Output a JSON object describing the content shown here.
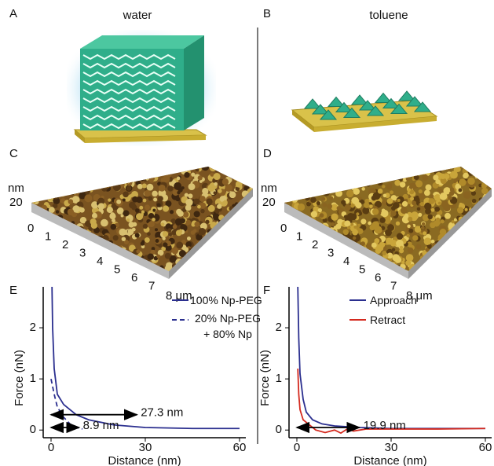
{
  "figure": {
    "labels": [
      "A",
      "B",
      "C",
      "D"
    ],
    "solvents": [
      "water",
      "toluene"
    ],
    "afm": {
      "z_unit": "nm",
      "z_ticks": [
        "20"
      ],
      "xy_ticks": [
        "0",
        "1",
        "2",
        "3",
        "4",
        "5",
        "6",
        "7"
      ],
      "xy_end": "8 μm"
    }
  },
  "chart_data": [
    {
      "type": "line",
      "label": "E",
      "xlabel": "Distance (nm)",
      "ylabel": "Force (nN)",
      "xlim": [
        -2.5,
        62
      ],
      "ylim": [
        -0.15,
        2.8
      ],
      "xticks": [
        0,
        30,
        60
      ],
      "yticks": [
        0,
        1,
        2
      ],
      "legend": "upper right",
      "series": [
        {
          "name": "100% Np-PEG",
          "color": "#2b2f8f",
          "dash": false,
          "x": [
            0.3,
            0.5,
            1,
            2,
            4,
            8,
            12,
            20,
            30,
            45,
            60
          ],
          "values": [
            2.8,
            2.0,
            1.2,
            0.7,
            0.5,
            0.3,
            0.2,
            0.1,
            0.05,
            0.03,
            0.03
          ]
        },
        {
          "name": "20% Np-PEG + 80% Np",
          "color": "#2b2f8f",
          "dash": true,
          "x": [
            0,
            1,
            2,
            4,
            6,
            8,
            10
          ],
          "values": [
            1.0,
            0.7,
            0.45,
            0.25,
            0.12,
            0.05,
            0.02
          ]
        }
      ],
      "arrows": [
        {
          "label": "27.3 nm",
          "from": 0,
          "to": 27.3,
          "y": 0.3
        },
        {
          "label": "8.9 nm",
          "from": 0,
          "to": 8.9,
          "y": 0.05
        }
      ]
    },
    {
      "type": "line",
      "label": "F",
      "xlabel": "Distance (nm)",
      "ylabel": "Force (nN)",
      "xlim": [
        -2.5,
        62
      ],
      "ylim": [
        -0.15,
        2.8
      ],
      "xticks": [
        0,
        30,
        60
      ],
      "yticks": [
        0,
        1,
        2
      ],
      "legend": "upper right",
      "series": [
        {
          "name": "Approach",
          "color": "#2b2f8f",
          "dash": false,
          "x": [
            0.3,
            0.6,
            1,
            2,
            3,
            5,
            8,
            12,
            20,
            30,
            45,
            60
          ],
          "values": [
            2.8,
            1.8,
            1.1,
            0.6,
            0.35,
            0.2,
            0.12,
            0.08,
            0.05,
            0.03,
            0.03,
            0.03
          ]
        },
        {
          "name": "Retract",
          "color": "#d42a1f",
          "dash": false,
          "x": [
            0.3,
            0.6,
            1,
            2,
            4,
            6,
            9,
            12,
            14,
            16,
            18,
            22,
            30,
            45,
            60
          ],
          "values": [
            1.2,
            0.7,
            0.4,
            0.2,
            0.1,
            0.0,
            -0.05,
            0.0,
            -0.06,
            0.02,
            -0.02,
            0.02,
            0.02,
            0.02,
            0.03
          ]
        }
      ],
      "arrows": [
        {
          "label": "19.9 nm",
          "from": 0,
          "to": 19.9,
          "y": 0.05
        }
      ]
    }
  ]
}
